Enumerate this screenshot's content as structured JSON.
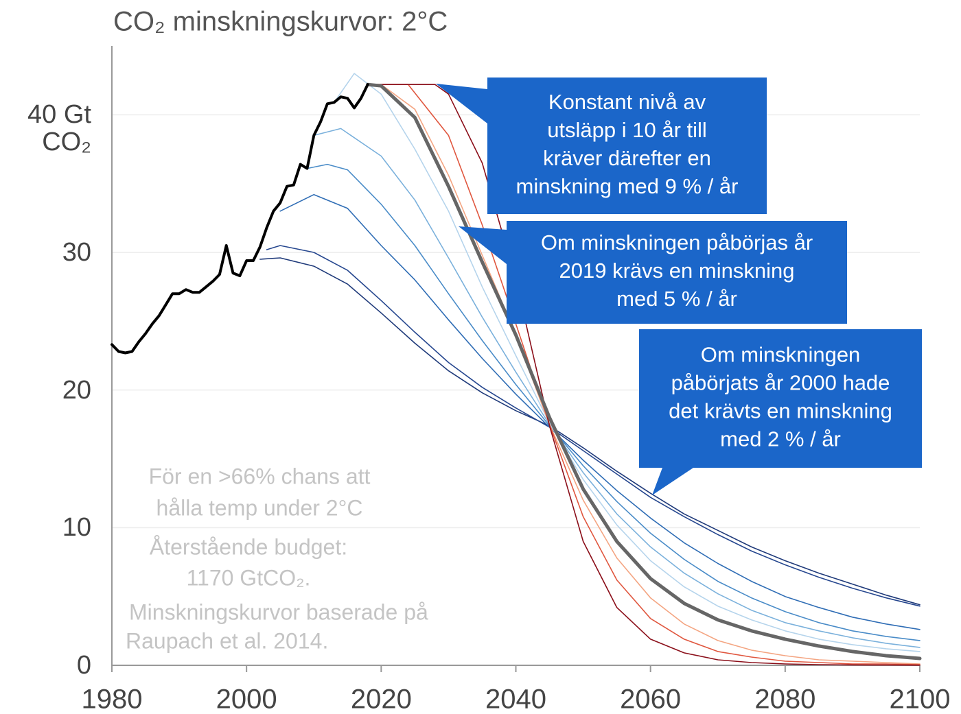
{
  "chart_data": {
    "type": "line",
    "title": "CO₂ minskningskurvor: 2°C",
    "xlim": [
      1980,
      2100
    ],
    "xticks": [
      1980,
      2000,
      2020,
      2040,
      2060,
      2080,
      2100
    ],
    "ylim": [
      0,
      45
    ],
    "yticks": [
      0,
      10,
      20,
      30,
      {
        "value": 40,
        "label": "40 Gt CO₂"
      }
    ],
    "grid": true,
    "series": [
      {
        "color": "#1f3a7a",
        "linewidth": 1.6,
        "x": [
          2002,
          2005,
          2010,
          2015,
          2020,
          2025,
          2030,
          2035,
          2040,
          2045,
          2050,
          2055,
          2060,
          2065,
          2070,
          2075,
          2080,
          2085,
          2090,
          2095,
          2100
        ],
        "values": [
          29.5,
          29.6,
          29.0,
          27.7,
          25.6,
          23.4,
          21.4,
          19.8,
          18.5,
          17.4,
          15.8,
          14.1,
          12.5,
          11.0,
          9.8,
          8.6,
          7.6,
          6.7,
          5.9,
          5.1,
          4.4
        ]
      },
      {
        "color": "#26478f",
        "linewidth": 1.6,
        "x": [
          2003,
          2005,
          2010,
          2015,
          2020,
          2025,
          2030,
          2035,
          2040,
          2045,
          2050,
          2055,
          2060,
          2065,
          2070,
          2075,
          2080,
          2085,
          2090,
          2095,
          2100
        ],
        "values": [
          30.2,
          30.5,
          30.0,
          28.7,
          26.5,
          24.2,
          22.0,
          20.2,
          18.7,
          17.3,
          15.6,
          13.9,
          12.2,
          10.8,
          9.5,
          8.3,
          7.3,
          6.4,
          5.6,
          4.9,
          4.3
        ]
      },
      {
        "color": "#2f6db5",
        "linewidth": 1.6,
        "x": [
          2005,
          2010,
          2015,
          2020,
          2025,
          2030,
          2035,
          2040,
          2045,
          2050,
          2055,
          2060,
          2065,
          2070,
          2075,
          2080,
          2085,
          2090,
          2095,
          2100
        ],
        "values": [
          33.0,
          34.2,
          33.2,
          30.5,
          28.0,
          25.1,
          22.3,
          19.7,
          17.3,
          14.9,
          12.7,
          10.7,
          8.9,
          7.4,
          6.1,
          5.0,
          4.2,
          3.5,
          3.0,
          2.6
        ]
      },
      {
        "color": "#4a8cc8",
        "linewidth": 1.6,
        "x": [
          2009,
          2012,
          2015,
          2020,
          2025,
          2030,
          2035,
          2040,
          2045,
          2050,
          2055,
          2060,
          2065,
          2070,
          2075,
          2080,
          2085,
          2090,
          2095,
          2100
        ],
        "values": [
          36.1,
          36.4,
          36.0,
          33.5,
          30.5,
          27.0,
          23.6,
          20.4,
          17.4,
          14.5,
          11.9,
          9.6,
          7.7,
          6.1,
          4.9,
          3.9,
          3.1,
          2.5,
          2.1,
          1.8
        ]
      },
      {
        "color": "#7bb1dc",
        "linewidth": 1.6,
        "x": [
          2010,
          2014,
          2020,
          2025,
          2030,
          2035,
          2040,
          2045,
          2050,
          2055,
          2060,
          2065,
          2070,
          2075,
          2080,
          2085,
          2090,
          2095,
          2100
        ],
        "values": [
          38.5,
          39.0,
          37.0,
          33.8,
          29.6,
          25.3,
          21.3,
          17.5,
          14.0,
          11.0,
          8.6,
          6.7,
          5.2,
          4.0,
          3.1,
          2.5,
          2.0,
          1.6,
          1.3
        ]
      },
      {
        "color": "#b5d4ec",
        "linewidth": 1.6,
        "x": [
          2013,
          2016,
          2020,
          2025,
          2030,
          2035,
          2040,
          2045,
          2050,
          2055,
          2060,
          2065,
          2070,
          2075,
          2080,
          2085,
          2090,
          2095,
          2100
        ],
        "values": [
          40.9,
          43.0,
          41.5,
          37.5,
          33.0,
          27.5,
          22.5,
          17.6,
          13.5,
          10.2,
          7.6,
          5.7,
          4.3,
          3.3,
          2.5,
          1.9,
          1.5,
          1.2,
          1.0
        ]
      },
      {
        "color": "#f4a582",
        "linewidth": 1.6,
        "x": [
          2018,
          2020,
          2025,
          2030,
          2035,
          2040,
          2045,
          2050,
          2055,
          2060,
          2065,
          2070,
          2075,
          2080,
          2085,
          2090,
          2095,
          2100
        ],
        "values": [
          42.2,
          42.2,
          40.4,
          35.6,
          29.8,
          24.0,
          17.5,
          12.0,
          7.8,
          4.9,
          3.0,
          1.8,
          1.1,
          0.7,
          0.4,
          0.3,
          0.2,
          0.1
        ]
      },
      {
        "color": "#e0573f",
        "linewidth": 1.6,
        "x": [
          2018,
          2024,
          2030,
          2035,
          2040,
          2045,
          2050,
          2055,
          2060,
          2065,
          2070,
          2075,
          2080,
          2085,
          2090,
          2095,
          2100
        ],
        "values": [
          42.2,
          42.2,
          38.5,
          32.0,
          24.8,
          17.5,
          10.8,
          6.2,
          3.4,
          1.9,
          1.0,
          0.6,
          0.3,
          0.2,
          0.1,
          0.1,
          0.05
        ]
      },
      {
        "color": "#8b0f1a",
        "linewidth": 1.6,
        "x": [
          2018,
          2028,
          2030,
          2035,
          2040,
          2045,
          2050,
          2055,
          2060,
          2065,
          2070,
          2075,
          2080,
          2085,
          2090,
          2095,
          2100
        ],
        "values": [
          42.2,
          42.2,
          41.5,
          36.5,
          28.0,
          17.4,
          9.0,
          4.2,
          1.9,
          0.9,
          0.4,
          0.2,
          0.1,
          0.05,
          0.03,
          0.02,
          0.01
        ]
      },
      {
        "color": "#666666",
        "linewidth": 5,
        "x": [
          2018,
          2020,
          2025,
          2030,
          2035,
          2040,
          2045,
          2050,
          2055,
          2060,
          2065,
          2070,
          2075,
          2080,
          2085,
          2090,
          2095,
          2100
        ],
        "values": [
          42.2,
          42.1,
          39.8,
          34.8,
          29.3,
          24.0,
          18.0,
          12.8,
          9.0,
          6.3,
          4.5,
          3.3,
          2.5,
          1.9,
          1.4,
          1.0,
          0.7,
          0.5
        ]
      },
      {
        "color": "#000000",
        "linewidth": 4,
        "x": [
          1980,
          1981,
          1982,
          1983,
          1984,
          1985,
          1986,
          1987,
          1988,
          1989,
          1990,
          1991,
          1992,
          1993,
          1994,
          1995,
          1996,
          1997,
          1998,
          1999,
          2000,
          2001,
          2002,
          2003,
          2004,
          2005,
          2006,
          2007,
          2008,
          2009,
          2010,
          2011,
          2012,
          2013,
          2014,
          2015,
          2016,
          2017,
          2018
        ],
        "values": [
          23.3,
          22.8,
          22.7,
          22.8,
          23.5,
          24.1,
          24.8,
          25.4,
          26.2,
          27.0,
          27.0,
          27.3,
          27.1,
          27.1,
          27.5,
          27.9,
          28.4,
          30.5,
          28.5,
          28.3,
          29.4,
          29.4,
          30.4,
          31.8,
          33.0,
          33.6,
          34.8,
          34.9,
          36.4,
          36.1,
          38.5,
          39.5,
          40.8,
          40.9,
          41.3,
          41.2,
          40.5,
          41.2,
          42.2
        ]
      }
    ],
    "callouts": [
      {
        "lines": [
          "Konstant nivå av",
          "utsläpp i 10 år till",
          "kräver därefter en",
          "minskning med 9 % / år"
        ]
      },
      {
        "lines": [
          "Om minskningen påbörjas år",
          "2019 krävs en minskning",
          "med 5 % / år"
        ]
      },
      {
        "lines": [
          "Om minskningen",
          "påbörjats år 2000 hade",
          "det krävts en minskning",
          "med 2 % / år"
        ]
      }
    ],
    "notes": [
      "För en >66% chans att",
      "hålla temp under 2°C",
      "Återstående budget:",
      "1170 GtCO₂.",
      "Minskningskurvor baserade på",
      "Raupach et al. 2014."
    ]
  }
}
